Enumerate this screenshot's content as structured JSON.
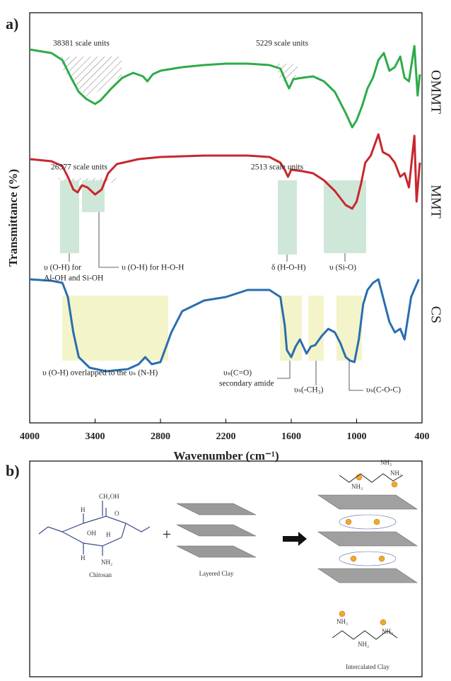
{
  "chart_data": {
    "type": "line",
    "panel_label": "a)",
    "ylabel": "Transmittance (%)",
    "xlabel": "Wavenumber (cm⁻¹)",
    "xlim": [
      4000,
      400
    ],
    "xticks": [
      4000,
      3400,
      2800,
      2200,
      1600,
      1000,
      400
    ],
    "ylim": [
      0,
      580
    ],
    "series": [
      {
        "name": "OMMT",
        "color": "#2eab48",
        "x": [
          4000,
          3800,
          3700,
          3620,
          3550,
          3480,
          3400,
          3350,
          3250,
          3150,
          3050,
          2960,
          2920,
          2870,
          2800,
          2600,
          2400,
          2200,
          2000,
          1800,
          1700,
          1650,
          1620,
          1580,
          1500,
          1400,
          1300,
          1200,
          1100,
          1040,
          1000,
          950,
          900,
          850,
          800,
          750,
          700,
          650,
          600,
          560,
          520,
          470,
          440,
          420
        ],
        "values": [
          528,
          523,
          513,
          488,
          468,
          458,
          451,
          456,
          473,
          488,
          495,
          490,
          483,
          493,
          498,
          503,
          506,
          508,
          508,
          506,
          501,
          483,
          473,
          486,
          488,
          490,
          483,
          468,
          438,
          418,
          428,
          448,
          473,
          488,
          513,
          523,
          498,
          503,
          518,
          488,
          483,
          533,
          463,
          493
        ]
      },
      {
        "name": "MMT",
        "color": "#c8272d",
        "x": [
          4000,
          3800,
          3700,
          3650,
          3600,
          3560,
          3520,
          3470,
          3400,
          3340,
          3280,
          3200,
          3000,
          2800,
          2400,
          2000,
          1800,
          1700,
          1660,
          1630,
          1600,
          1500,
          1400,
          1300,
          1200,
          1100,
          1040,
          1000,
          960,
          920,
          870,
          800,
          760,
          700,
          650,
          600,
          560,
          520,
          470,
          450,
          420
        ],
        "values": [
          373,
          370,
          363,
          348,
          330,
          326,
          336,
          333,
          323,
          330,
          353,
          366,
          373,
          376,
          378,
          378,
          376,
          368,
          358,
          348,
          358,
          356,
          353,
          343,
          328,
          308,
          303,
          313,
          338,
          368,
          378,
          408,
          383,
          378,
          368,
          348,
          353,
          333,
          406,
          313,
          368
        ]
      },
      {
        "name": "CS",
        "color": "#2a6db0",
        "x": [
          4000,
          3800,
          3700,
          3650,
          3600,
          3550,
          3450,
          3300,
          3100,
          3000,
          2940,
          2880,
          2800,
          2700,
          2600,
          2400,
          2200,
          2000,
          1800,
          1700,
          1660,
          1640,
          1600,
          1560,
          1520,
          1460,
          1420,
          1380,
          1320,
          1260,
          1200,
          1150,
          1100,
          1060,
          1020,
          980,
          940,
          900,
          850,
          800,
          700,
          650,
          600,
          560,
          500,
          430
        ],
        "values": [
          203,
          201,
          198,
          178,
          128,
          93,
          78,
          73,
          76,
          83,
          93,
          83,
          86,
          128,
          158,
          173,
          178,
          188,
          188,
          178,
          138,
          103,
          93,
          108,
          118,
          98,
          108,
          110,
          123,
          133,
          128,
          113,
          93,
          88,
          86,
          118,
          168,
          188,
          198,
          203,
          143,
          128,
          133,
          118,
          178,
          203
        ]
      }
    ],
    "annotations": [
      "38381 scale units",
      "5229 scale units",
      "26377 scale units",
      "2513 scale units",
      [
        "υ (O-H) for",
        "Al-OH and Si-OH"
      ],
      "υ (O-H) for H-O-H",
      "δ (H-O-H)",
      "υ (Si-O)",
      "υ (O-H) overlapped to the υₛ (N-H)",
      [
        "υₛ(C=O)",
        "secondary amide"
      ],
      "υₛ(-CH₃)",
      "υₛ(C-O-C)"
    ]
  },
  "schematic": {
    "panel_label": "b)",
    "chitosan": {
      "labels": [
        "CH₂OH",
        "O",
        "H",
        "OH",
        "H",
        "H",
        "NH₂"
      ],
      "caption": "Chitosan"
    },
    "plus": "+",
    "clay_caption": "Layered Clay",
    "intercalated": {
      "labels": [
        "NH₃",
        "NH₃",
        "NH₃",
        "NH₃",
        "NH₂",
        "NH₃"
      ],
      "caption": "Intercalated Clay"
    }
  }
}
